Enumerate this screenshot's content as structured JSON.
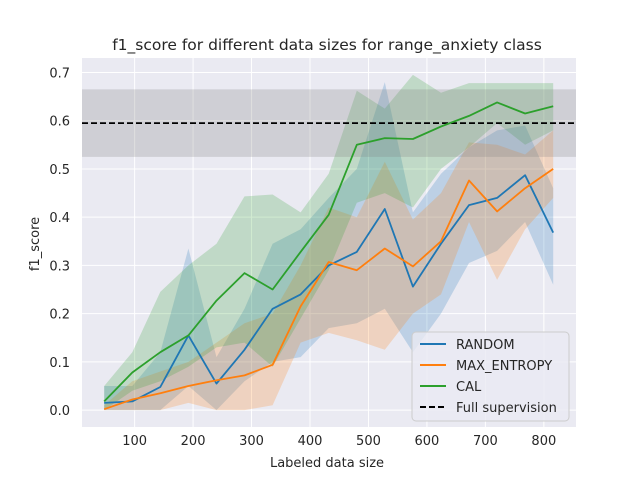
{
  "chart_data": {
    "type": "line",
    "title": "f1_score for different data sizes for range_anxiety class",
    "xlabel": "Labeled data size",
    "ylabel": "f1_score",
    "xlim": [
      10,
      855
    ],
    "ylim": [
      -0.035,
      0.73
    ],
    "xticks": [
      100,
      200,
      300,
      400,
      500,
      600,
      700,
      800
    ],
    "yticks": [
      0.0,
      0.1,
      0.2,
      0.3,
      0.4,
      0.5,
      0.6,
      0.7
    ],
    "xtick_labels": [
      "100",
      "200",
      "300",
      "400",
      "500",
      "600",
      "700",
      "800"
    ],
    "ytick_labels": [
      "0.0",
      "0.1",
      "0.2",
      "0.3",
      "0.4",
      "0.5",
      "0.6",
      "0.7"
    ],
    "grid": true,
    "legend_position": "lower-right",
    "background": "#eaeaf2",
    "x": [
      48,
      96,
      144,
      192,
      240,
      288,
      336,
      384,
      432,
      480,
      528,
      576,
      624,
      672,
      720,
      768,
      816
    ],
    "series": [
      {
        "name": "RANDOM",
        "color": "#1f77b4",
        "values": [
          0.015,
          0.018,
          0.048,
          0.155,
          0.055,
          0.125,
          0.21,
          0.24,
          0.3,
          0.328,
          0.417,
          0.256,
          0.345,
          0.425,
          0.44,
          0.487,
          0.368
        ],
        "upper": [
          0.05,
          0.05,
          0.12,
          0.335,
          0.11,
          0.21,
          0.345,
          0.375,
          0.44,
          0.5,
          0.68,
          0.41,
          0.49,
          0.545,
          0.58,
          0.59,
          0.46
        ],
        "lower": [
          0.0,
          0.0,
          0.0,
          0.05,
          0.0,
          0.06,
          0.1,
          0.11,
          0.17,
          0.18,
          0.21,
          0.12,
          0.2,
          0.305,
          0.33,
          0.39,
          0.26
        ]
      },
      {
        "name": "MAX_ENTROPY",
        "color": "#ff7f0e",
        "values": [
          0.002,
          0.022,
          0.035,
          0.05,
          0.062,
          0.072,
          0.094,
          0.215,
          0.307,
          0.29,
          0.335,
          0.298,
          0.35,
          0.476,
          0.412,
          0.46,
          0.5
        ],
        "upper": [
          0.01,
          0.06,
          0.08,
          0.1,
          0.14,
          0.18,
          0.2,
          0.3,
          0.42,
          0.4,
          0.515,
          0.395,
          0.45,
          0.555,
          0.55,
          0.53,
          0.58
        ],
        "lower": [
          0.0,
          0.0,
          0.0,
          0.015,
          0.0,
          0.0,
          0.01,
          0.14,
          0.16,
          0.145,
          0.125,
          0.2,
          0.24,
          0.39,
          0.27,
          0.375,
          0.44
        ]
      },
      {
        "name": "CAL",
        "color": "#2ca02c",
        "values": [
          0.018,
          0.078,
          0.12,
          0.155,
          0.227,
          0.284,
          0.25,
          0.328,
          0.405,
          0.55,
          0.564,
          0.562,
          0.588,
          0.61,
          0.638,
          0.615,
          0.63
        ],
        "upper": [
          0.05,
          0.12,
          0.245,
          0.3,
          0.345,
          0.443,
          0.447,
          0.41,
          0.49,
          0.662,
          0.625,
          0.695,
          0.658,
          0.678,
          0.678,
          0.678,
          0.678
        ],
        "lower": [
          0.0,
          0.04,
          0.06,
          0.09,
          0.13,
          0.14,
          0.09,
          0.19,
          0.29,
          0.43,
          0.45,
          0.42,
          0.5,
          0.545,
          0.595,
          0.55,
          0.58
        ]
      }
    ],
    "reference": {
      "name": "Full supervision",
      "value": 0.595,
      "band": [
        0.525,
        0.665
      ],
      "color": "#000000",
      "band_color": "#7f7f7f"
    }
  }
}
